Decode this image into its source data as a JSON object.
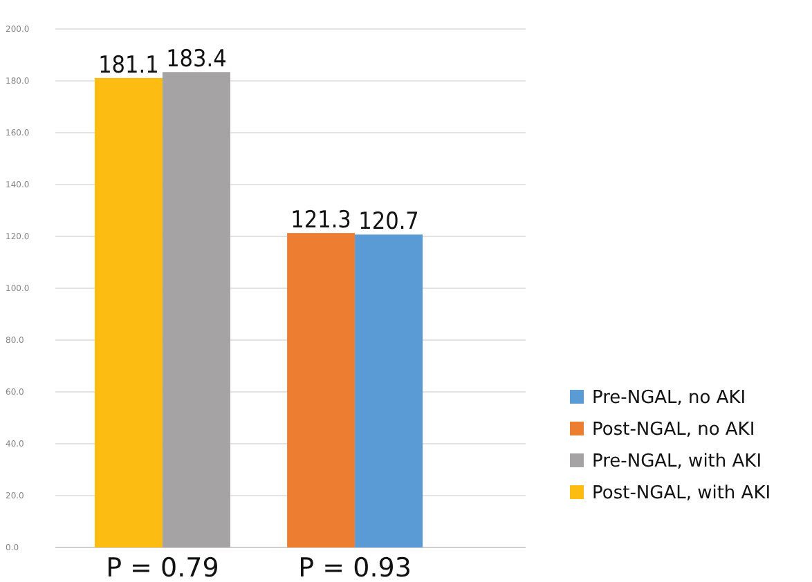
{
  "chart_data": {
    "type": "bar",
    "categories": [
      "P = 0.79",
      "P = 0.93"
    ],
    "series": [
      {
        "name": "Pre-NGAL, no AKI",
        "color": "#5b9bd5",
        "values": [
          null,
          120.7
        ]
      },
      {
        "name": "Post-NGAL, no AKI",
        "color": "#ed7d31",
        "values": [
          null,
          121.3
        ]
      },
      {
        "name": "Pre-NGAL, with AKI",
        "color": "#a5a3a4",
        "values": [
          183.4,
          null
        ]
      },
      {
        "name": "Post-NGAL, with AKI",
        "color": "#fcbc12",
        "values": [
          181.1,
          null
        ]
      }
    ],
    "ylim": [
      0,
      200
    ],
    "yticks": [
      {
        "value": 0,
        "label": "0.0"
      },
      {
        "value": 20,
        "label": "20.0"
      },
      {
        "value": 40,
        "label": "40.0"
      },
      {
        "value": 60,
        "label": "60.0"
      },
      {
        "value": 80,
        "label": "80.0"
      },
      {
        "value": 100,
        "label": "100.0"
      },
      {
        "value": 120,
        "label": "120.0"
      },
      {
        "value": 140,
        "label": "140.0"
      },
      {
        "value": 160,
        "label": "160.0"
      },
      {
        "value": 180,
        "label": "180.0"
      },
      {
        "value": 200,
        "label": "200.0"
      }
    ],
    "grid": "y",
    "legend": "right",
    "data_labels": true
  }
}
